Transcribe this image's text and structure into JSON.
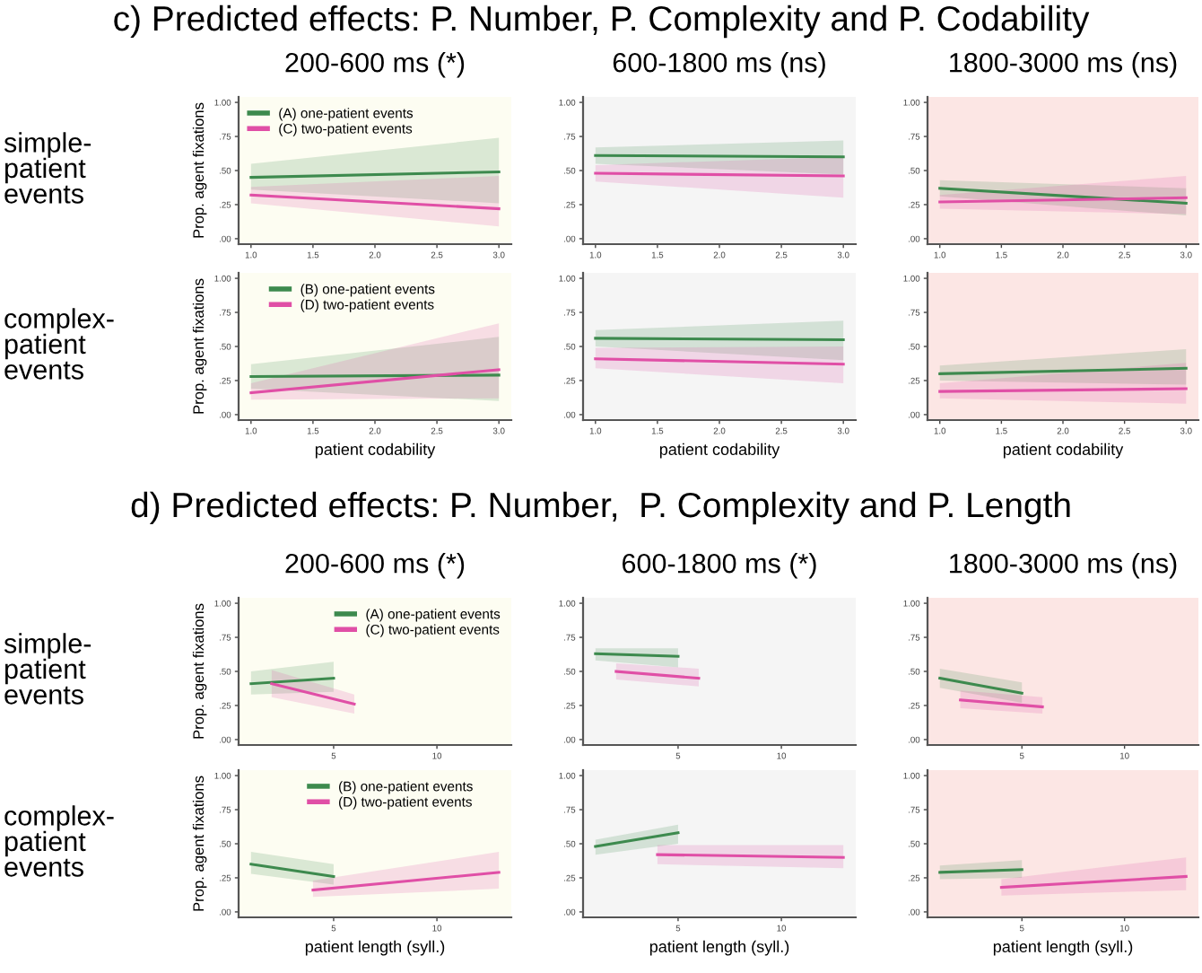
{
  "chart_data": [
    {
      "type": "line",
      "title": "200-600 ms (*)",
      "ylabel": "Prop. agent fixations",
      "annotations": [
        "c) Predicted effects: P. Number, P. Complexity and P. Codability",
        "simple-\npatient\nevents"
      ],
      "legend": "top left",
      "xlim": [
        0.9,
        3.1
      ],
      "ylim": [
        -0.04,
        1.04
      ],
      "xticks": [
        {
          "value": 1,
          "label": "1.0"
        },
        {
          "value": 1.5,
          "label": "1.5"
        },
        {
          "value": 2,
          "label": "2.0"
        },
        {
          "value": 2.5,
          "label": "2.5"
        },
        {
          "value": 3,
          "label": "3.0"
        }
      ],
      "yticks": [
        {
          "value": 0,
          "label": ".00"
        },
        {
          "value": 0.25,
          "label": ".25"
        },
        {
          "value": 0.5,
          "label": ".50"
        },
        {
          "value": 0.75,
          "label": ".75"
        },
        {
          "value": 1,
          "label": "1.00"
        }
      ],
      "series": [
        {
          "name": "(A) one-patient events",
          "color": "#3d8a4e",
          "x": [
            1,
            3
          ],
          "values": [
            0.45,
            0.49
          ],
          "lower": [
            0.36,
            0.26
          ],
          "upper": [
            0.55,
            0.74
          ]
        },
        {
          "name": "(C) two-patient events",
          "color": "#e04fa6",
          "x": [
            1,
            3
          ],
          "values": [
            0.32,
            0.22
          ],
          "lower": [
            0.26,
            0.09
          ],
          "upper": [
            0.38,
            0.46
          ]
        }
      ]
    },
    {
      "type": "line",
      "title": "600-1800 ms (ns)",
      "xlim": [
        0.9,
        3.1
      ],
      "ylim": [
        -0.04,
        1.04
      ],
      "xticks": [
        {
          "value": 1,
          "label": "1.0"
        },
        {
          "value": 1.5,
          "label": "1.5"
        },
        {
          "value": 2,
          "label": "2.0"
        },
        {
          "value": 2.5,
          "label": "2.5"
        },
        {
          "value": 3,
          "label": "3.0"
        }
      ],
      "yticks": [
        {
          "value": 0,
          "label": ".00"
        },
        {
          "value": 0.25,
          "label": ".25"
        },
        {
          "value": 0.5,
          "label": ".50"
        },
        {
          "value": 0.75,
          "label": ".75"
        },
        {
          "value": 1,
          "label": "1.00"
        }
      ],
      "series": [
        {
          "color": "#3d8a4e",
          "x": [
            1,
            3
          ],
          "values": [
            0.61,
            0.6
          ],
          "lower": [
            0.55,
            0.47
          ],
          "upper": [
            0.67,
            0.72
          ]
        },
        {
          "color": "#e04fa6",
          "x": [
            1,
            3
          ],
          "values": [
            0.48,
            0.46
          ],
          "lower": [
            0.42,
            0.3
          ],
          "upper": [
            0.54,
            0.6
          ]
        }
      ]
    },
    {
      "type": "line",
      "title": "1800-3000 ms (ns)",
      "xlim": [
        0.9,
        3.1
      ],
      "ylim": [
        -0.04,
        1.04
      ],
      "xticks": [
        {
          "value": 1,
          "label": "1.0"
        },
        {
          "value": 1.5,
          "label": "1.5"
        },
        {
          "value": 2,
          "label": "2.0"
        },
        {
          "value": 2.5,
          "label": "2.5"
        },
        {
          "value": 3,
          "label": "3.0"
        }
      ],
      "yticks": [
        {
          "value": 0,
          "label": ".00"
        },
        {
          "value": 0.25,
          "label": ".25"
        },
        {
          "value": 0.5,
          "label": ".50"
        },
        {
          "value": 0.75,
          "label": ".75"
        },
        {
          "value": 1,
          "label": "1.00"
        }
      ],
      "series": [
        {
          "color": "#3d8a4e",
          "x": [
            1,
            3
          ],
          "values": [
            0.37,
            0.26
          ],
          "lower": [
            0.31,
            0.17
          ],
          "upper": [
            0.43,
            0.37
          ]
        },
        {
          "color": "#e04fa6",
          "x": [
            1,
            3
          ],
          "values": [
            0.27,
            0.3
          ],
          "lower": [
            0.22,
            0.18
          ],
          "upper": [
            0.32,
            0.46
          ]
        }
      ]
    },
    {
      "type": "line",
      "xlabel": "patient codability",
      "ylabel": "Prop. agent fixations",
      "annotations": [
        "complex-\npatient\nevents"
      ],
      "legend": "top left",
      "xlim": [
        0.9,
        3.1
      ],
      "ylim": [
        -0.04,
        1.04
      ],
      "xticks": [
        {
          "value": 1,
          "label": "1.0"
        },
        {
          "value": 1.5,
          "label": "1.5"
        },
        {
          "value": 2,
          "label": "2.0"
        },
        {
          "value": 2.5,
          "label": "2.5"
        },
        {
          "value": 3,
          "label": "3.0"
        }
      ],
      "yticks": [
        {
          "value": 0,
          "label": ".00"
        },
        {
          "value": 0.25,
          "label": ".25"
        },
        {
          "value": 0.5,
          "label": ".50"
        },
        {
          "value": 0.75,
          "label": ".75"
        },
        {
          "value": 1,
          "label": "1.00"
        }
      ],
      "series": [
        {
          "name": "(B) one-patient events",
          "color": "#3d8a4e",
          "x": [
            1,
            3
          ],
          "values": [
            0.28,
            0.29
          ],
          "lower": [
            0.19,
            0.1
          ],
          "upper": [
            0.37,
            0.57
          ]
        },
        {
          "name": "(D) two-patient events",
          "color": "#e04fa6",
          "x": [
            1,
            3
          ],
          "values": [
            0.16,
            0.33
          ],
          "lower": [
            0.11,
            0.12
          ],
          "upper": [
            0.23,
            0.67
          ]
        }
      ]
    },
    {
      "type": "line",
      "xlabel": "patient codability",
      "xlim": [
        0.9,
        3.1
      ],
      "ylim": [
        -0.04,
        1.04
      ],
      "xticks": [
        {
          "value": 1,
          "label": "1.0"
        },
        {
          "value": 1.5,
          "label": "1.5"
        },
        {
          "value": 2,
          "label": "2.0"
        },
        {
          "value": 2.5,
          "label": "2.5"
        },
        {
          "value": 3,
          "label": "3.0"
        }
      ],
      "yticks": [
        {
          "value": 0,
          "label": ".00"
        },
        {
          "value": 0.25,
          "label": ".25"
        },
        {
          "value": 0.5,
          "label": ".50"
        },
        {
          "value": 0.75,
          "label": ".75"
        },
        {
          "value": 1,
          "label": "1.00"
        }
      ],
      "series": [
        {
          "color": "#3d8a4e",
          "x": [
            1,
            3
          ],
          "values": [
            0.56,
            0.55
          ],
          "lower": [
            0.5,
            0.4
          ],
          "upper": [
            0.62,
            0.69
          ]
        },
        {
          "color": "#e04fa6",
          "x": [
            1,
            3
          ],
          "values": [
            0.41,
            0.37
          ],
          "lower": [
            0.34,
            0.23
          ],
          "upper": [
            0.49,
            0.5
          ]
        }
      ]
    },
    {
      "type": "line",
      "xlabel": "patient codability",
      "xlim": [
        0.9,
        3.1
      ],
      "ylim": [
        -0.04,
        1.04
      ],
      "xticks": [
        {
          "value": 1,
          "label": "1.0"
        },
        {
          "value": 1.5,
          "label": "1.5"
        },
        {
          "value": 2,
          "label": "2.0"
        },
        {
          "value": 2.5,
          "label": "2.5"
        },
        {
          "value": 3,
          "label": "3.0"
        }
      ],
      "yticks": [
        {
          "value": 0,
          "label": ".00"
        },
        {
          "value": 0.25,
          "label": ".25"
        },
        {
          "value": 0.5,
          "label": ".50"
        },
        {
          "value": 0.75,
          "label": ".75"
        },
        {
          "value": 1,
          "label": "1.00"
        }
      ],
      "series": [
        {
          "color": "#3d8a4e",
          "x": [
            1,
            3
          ],
          "values": [
            0.3,
            0.34
          ],
          "lower": [
            0.25,
            0.22
          ],
          "upper": [
            0.36,
            0.48
          ]
        },
        {
          "color": "#e04fa6",
          "x": [
            1,
            3
          ],
          "values": [
            0.17,
            0.19
          ],
          "lower": [
            0.12,
            0.08
          ],
          "upper": [
            0.23,
            0.38
          ]
        }
      ]
    },
    {
      "type": "line",
      "title": "200-600 ms (*)",
      "ylabel": "Prop. agent fixations",
      "annotations": [
        "d) Predicted effects: P. Number,  P. Complexity and P. Length",
        "simple-\npatient\nevents"
      ],
      "legend": "top right",
      "xlim": [
        0.4,
        13.6
      ],
      "ylim": [
        -0.04,
        1.04
      ],
      "xticks": [
        5,
        10
      ],
      "yticks": [
        {
          "value": 0,
          "label": ".00"
        },
        {
          "value": 0.25,
          "label": ".25"
        },
        {
          "value": 0.5,
          "label": ".50"
        },
        {
          "value": 0.75,
          "label": ".75"
        },
        {
          "value": 1,
          "label": "1.00"
        }
      ],
      "series": [
        {
          "name": "(A) one-patient events",
          "color": "#3d8a4e",
          "x": [
            1,
            5
          ],
          "values": [
            0.41,
            0.45
          ],
          "lower": [
            0.33,
            0.35
          ],
          "upper": [
            0.5,
            0.57
          ]
        },
        {
          "name": "(C) two-patient events",
          "color": "#e04fa6",
          "x": [
            2,
            6
          ],
          "values": [
            0.41,
            0.26
          ],
          "lower": [
            0.31,
            0.19
          ],
          "upper": [
            0.51,
            0.33
          ]
        }
      ]
    },
    {
      "type": "line",
      "title": "600-1800 ms (*)",
      "xlim": [
        0.4,
        13.6
      ],
      "ylim": [
        -0.04,
        1.04
      ],
      "xticks": [
        5,
        10
      ],
      "yticks": [
        {
          "value": 0,
          "label": ".00"
        },
        {
          "value": 0.25,
          "label": ".25"
        },
        {
          "value": 0.5,
          "label": ".50"
        },
        {
          "value": 0.75,
          "label": ".75"
        },
        {
          "value": 1,
          "label": "1.00"
        }
      ],
      "series": [
        {
          "color": "#3d8a4e",
          "x": [
            1,
            5
          ],
          "values": [
            0.63,
            0.61
          ],
          "lower": [
            0.58,
            0.53
          ],
          "upper": [
            0.67,
            0.67
          ]
        },
        {
          "color": "#e04fa6",
          "x": [
            2,
            6
          ],
          "values": [
            0.5,
            0.45
          ],
          "lower": [
            0.44,
            0.39
          ],
          "upper": [
            0.56,
            0.52
          ]
        }
      ]
    },
    {
      "type": "line",
      "title": "1800-3000 ms (ns)",
      "xlim": [
        0.4,
        13.6
      ],
      "ylim": [
        -0.04,
        1.04
      ],
      "xticks": [
        5,
        10
      ],
      "yticks": [
        {
          "value": 0,
          "label": ".00"
        },
        {
          "value": 0.25,
          "label": ".25"
        },
        {
          "value": 0.5,
          "label": ".50"
        },
        {
          "value": 0.75,
          "label": ".75"
        },
        {
          "value": 1,
          "label": "1.00"
        }
      ],
      "series": [
        {
          "color": "#3d8a4e",
          "x": [
            1,
            5
          ],
          "values": [
            0.45,
            0.34
          ],
          "lower": [
            0.38,
            0.27
          ],
          "upper": [
            0.52,
            0.42
          ]
        },
        {
          "color": "#e04fa6",
          "x": [
            2,
            6
          ],
          "values": [
            0.29,
            0.24
          ],
          "lower": [
            0.23,
            0.19
          ],
          "upper": [
            0.36,
            0.31
          ]
        }
      ]
    },
    {
      "type": "line",
      "xlabel": "patient length (syll.)",
      "ylabel": "Prop. agent fixations",
      "annotations": [
        "complex-\npatient\nevents"
      ],
      "legend": "top right",
      "xlim": [
        0.4,
        13.6
      ],
      "ylim": [
        -0.04,
        1.04
      ],
      "xticks": [
        5,
        10
      ],
      "yticks": [
        {
          "value": 0,
          "label": ".00"
        },
        {
          "value": 0.25,
          "label": ".25"
        },
        {
          "value": 0.5,
          "label": ".50"
        },
        {
          "value": 0.75,
          "label": ".75"
        },
        {
          "value": 1,
          "label": "1.00"
        }
      ],
      "series": [
        {
          "name": "(B) one-patient events",
          "color": "#3d8a4e",
          "x": [
            1,
            5
          ],
          "values": [
            0.35,
            0.26
          ],
          "lower": [
            0.28,
            0.2
          ],
          "upper": [
            0.44,
            0.35
          ]
        },
        {
          "name": "(D) two-patient events",
          "color": "#e04fa6",
          "x": [
            4,
            13
          ],
          "values": [
            0.16,
            0.29
          ],
          "lower": [
            0.11,
            0.17
          ],
          "upper": [
            0.23,
            0.44
          ]
        }
      ]
    },
    {
      "type": "line",
      "xlabel": "patient length (syll.)",
      "xlim": [
        0.4,
        13.6
      ],
      "ylim": [
        -0.04,
        1.04
      ],
      "xticks": [
        5,
        10
      ],
      "yticks": [
        {
          "value": 0,
          "label": ".00"
        },
        {
          "value": 0.25,
          "label": ".25"
        },
        {
          "value": 0.5,
          "label": ".50"
        },
        {
          "value": 0.75,
          "label": ".75"
        },
        {
          "value": 1,
          "label": "1.00"
        }
      ],
      "series": [
        {
          "color": "#3d8a4e",
          "x": [
            1,
            5
          ],
          "values": [
            0.48,
            0.58
          ],
          "lower": [
            0.42,
            0.5
          ],
          "upper": [
            0.53,
            0.64
          ]
        },
        {
          "color": "#e04fa6",
          "x": [
            4,
            13
          ],
          "values": [
            0.42,
            0.4
          ],
          "lower": [
            0.35,
            0.32
          ],
          "upper": [
            0.49,
            0.49
          ]
        }
      ]
    },
    {
      "type": "line",
      "xlabel": "patient length (syll.)",
      "xlim": [
        0.4,
        13.6
      ],
      "ylim": [
        -0.04,
        1.04
      ],
      "xticks": [
        5,
        10
      ],
      "yticks": [
        {
          "value": 0,
          "label": ".00"
        },
        {
          "value": 0.25,
          "label": ".25"
        },
        {
          "value": 0.5,
          "label": ".50"
        },
        {
          "value": 0.75,
          "label": ".75"
        },
        {
          "value": 1,
          "label": "1.00"
        }
      ],
      "series": [
        {
          "color": "#3d8a4e",
          "x": [
            1,
            5
          ],
          "values": [
            0.29,
            0.31
          ],
          "lower": [
            0.24,
            0.25
          ],
          "upper": [
            0.34,
            0.38
          ]
        },
        {
          "color": "#e04fa6",
          "x": [
            4,
            13
          ],
          "values": [
            0.18,
            0.26
          ],
          "lower": [
            0.12,
            0.16
          ],
          "upper": [
            0.24,
            0.4
          ]
        }
      ]
    }
  ]
}
